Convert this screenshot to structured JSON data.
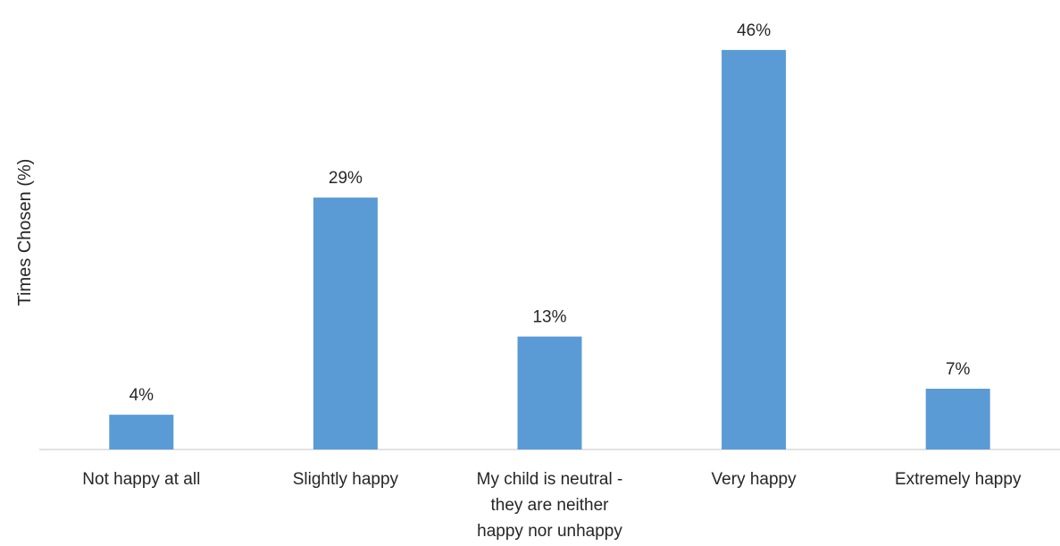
{
  "chart_data": {
    "type": "bar",
    "categories": [
      [
        "Not happy at all"
      ],
      [
        "Slightly happy"
      ],
      [
        "My child is neutral -",
        "they are neither",
        "happy nor unhappy"
      ],
      [
        "Very happy"
      ],
      [
        "Extremely happy"
      ]
    ],
    "values": [
      4,
      29,
      13,
      46,
      7
    ],
    "value_labels": [
      "4%",
      "29%",
      "13%",
      "46%",
      "7%"
    ],
    "title": "",
    "xlabel": "",
    "ylabel": "Times Chosen (%)",
    "ylim": [
      0,
      50
    ],
    "grid": false,
    "legend": "none",
    "colors": {
      "bar": "#5B9BD5",
      "axis": "#D9D9D9",
      "text": "#262626"
    }
  }
}
